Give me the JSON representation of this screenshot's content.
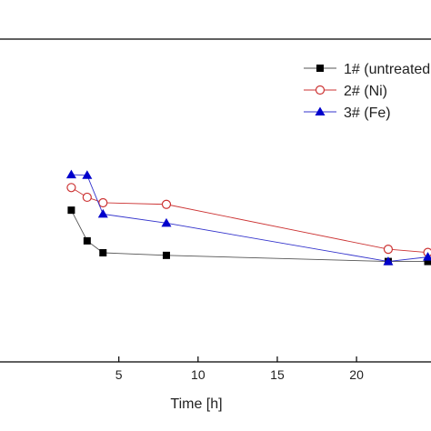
{
  "chart_data": {
    "type": "line",
    "xlabel": "Time [h]",
    "ylabel": "",
    "xlim": [
      -2.5,
      24.7
    ],
    "ylim": [
      0,
      1
    ],
    "x_ticks": [
      5,
      10,
      15,
      20
    ],
    "x_tick_labels": [
      "5",
      "10",
      "15",
      "20"
    ],
    "grid": false,
    "legend_position": "top-right",
    "series": [
      {
        "name": "1# (untreated",
        "marker": "filled-square",
        "color": "#000000",
        "line_color": "#555555",
        "x": [
          2,
          3,
          4,
          8,
          22,
          24.5
        ],
        "y": [
          0.47,
          0.375,
          0.338,
          0.33,
          0.311,
          0.311
        ]
      },
      {
        "name": "2# (Ni)",
        "marker": "open-circle",
        "color": "#cc3333",
        "line_color": "#cc3333",
        "x": [
          2,
          3,
          4,
          8,
          22,
          24.5
        ],
        "y": [
          0.54,
          0.51,
          0.493,
          0.488,
          0.349,
          0.339
        ]
      },
      {
        "name": "3# (Fe)",
        "marker": "filled-triangle",
        "color": "#0000cc",
        "line_color": "#3333cc",
        "x": [
          2,
          3,
          4,
          8,
          22,
          24.5
        ],
        "y": [
          0.58,
          0.578,
          0.458,
          0.43,
          0.311,
          0.325
        ]
      }
    ]
  }
}
